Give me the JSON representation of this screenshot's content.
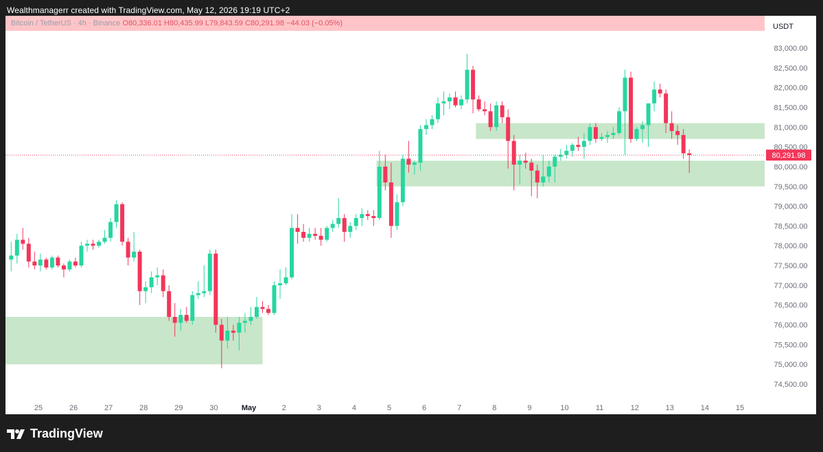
{
  "header": {
    "credit": "Wealthmanagerr created with TradingView.com, May 12, 2026 19:19 UTC+2"
  },
  "legend": {
    "symbol": "Bitcoin / TetherUS · 4h · Binance",
    "o_label": "O",
    "o_value": "80,336.01",
    "h_label": "H",
    "h_value": "80,435.99",
    "l_label": "L",
    "l_value": "79,843.59",
    "c_label": "C",
    "c_value": "80,291.98",
    "change": "−44.03 (−0.05%)"
  },
  "currency": "USDT",
  "brand": "TradingView",
  "colors": {
    "up": "#26d6a0",
    "down": "#f23659",
    "zone": "#c8e6c9",
    "price_tag": "#f23659"
  },
  "chart_data": {
    "type": "candlestick",
    "title": "Bitcoin / TetherUS · 4h · Binance",
    "ylabel": "USDT",
    "ylim": [
      74200,
      83300
    ],
    "y_ticks": [
      74500,
      75000,
      75500,
      76000,
      76500,
      77000,
      77500,
      78000,
      78500,
      79000,
      79500,
      80000,
      80500,
      81000,
      81500,
      82000,
      82500,
      83000
    ],
    "y_tick_labels": [
      "74,500.00",
      "75,000.00",
      "75,500.00",
      "76,000.00",
      "76,500.00",
      "77,000.00",
      "77,500.00",
      "78,000.00",
      "78,500.00",
      "79,000.00",
      "79,500.00",
      "80,000.00",
      "80,500.00",
      "81,000.00",
      "81,500.00",
      "82,000.00",
      "82,500.00",
      "83,000.00"
    ],
    "x_ticks": [
      "25",
      "26",
      "27",
      "28",
      "29",
      "30",
      "May",
      "2",
      "3",
      "4",
      "5",
      "6",
      "7",
      "8",
      "9",
      "10",
      "11",
      "12",
      "13",
      "14",
      "15"
    ],
    "candles_per_day": 6,
    "last_price": 80291.98,
    "last_price_label": "80,291.98",
    "zones": [
      {
        "from_index": 0,
        "to_index": 43,
        "low": 75000,
        "high": 76200
      },
      {
        "from_index": 63,
        "to_index": 130,
        "low": 79500,
        "high": 80150
      },
      {
        "from_index": 80,
        "to_index": 130,
        "low": 80700,
        "high": 81100
      }
    ],
    "candles": [
      [
        77650,
        78100,
        77350,
        77750
      ],
      [
        77750,
        78300,
        77550,
        78150
      ],
      [
        78150,
        78450,
        77900,
        78050
      ],
      [
        78050,
        78200,
        77450,
        77600
      ],
      [
        77600,
        77850,
        77400,
        77500
      ],
      [
        77500,
        77800,
        77350,
        77650
      ],
      [
        77650,
        77700,
        77400,
        77450
      ],
      [
        77450,
        77750,
        77400,
        77700
      ],
      [
        77700,
        77750,
        77450,
        77500
      ],
      [
        77500,
        77550,
        77200,
        77400
      ],
      [
        77400,
        77650,
        77350,
        77600
      ],
      [
        77600,
        77700,
        77450,
        77500
      ],
      [
        77500,
        78100,
        77450,
        78000
      ],
      [
        78000,
        78150,
        77850,
        78050
      ],
      [
        78050,
        78150,
        77900,
        78000
      ],
      [
        78000,
        78150,
        77950,
        78100
      ],
      [
        78100,
        78400,
        78050,
        78200
      ],
      [
        78200,
        78700,
        78100,
        78600
      ],
      [
        78600,
        79150,
        78450,
        79050
      ],
      [
        79050,
        79100,
        78000,
        78100
      ],
      [
        78100,
        78200,
        77500,
        77700
      ],
      [
        77700,
        78350,
        77600,
        77850
      ],
      [
        77850,
        77900,
        76500,
        76850
      ],
      [
        76850,
        77100,
        76550,
        76950
      ],
      [
        76950,
        77350,
        76800,
        77200
      ],
      [
        77200,
        77450,
        77000,
        77250
      ],
      [
        77250,
        77400,
        76700,
        76850
      ],
      [
        76850,
        77000,
        76100,
        76200
      ],
      [
        76200,
        76550,
        75700,
        76050
      ],
      [
        76050,
        76400,
        75850,
        76250
      ],
      [
        76250,
        76450,
        76050,
        76100
      ],
      [
        76100,
        76850,
        76000,
        76750
      ],
      [
        76750,
        77100,
        76650,
        76800
      ],
      [
        76800,
        77500,
        76700,
        76850
      ],
      [
        76850,
        77900,
        76750,
        77800
      ],
      [
        77800,
        77900,
        75800,
        76000
      ],
      [
        76000,
        76150,
        74900,
        75600
      ],
      [
        75600,
        76200,
        75400,
        75850
      ],
      [
        75850,
        76000,
        75600,
        75800
      ],
      [
        75800,
        76200,
        75350,
        76050
      ],
      [
        76050,
        76300,
        75800,
        76100
      ],
      [
        76100,
        76450,
        76000,
        76200
      ],
      [
        76200,
        76700,
        76150,
        76450
      ],
      [
        76450,
        76600,
        76300,
        76400
      ],
      [
        76400,
        76500,
        76250,
        76300
      ],
      [
        76300,
        77100,
        76250,
        77000
      ],
      [
        77000,
        77400,
        76650,
        77050
      ],
      [
        77050,
        77450,
        77000,
        77200
      ],
      [
        77200,
        78800,
        77150,
        78450
      ],
      [
        78450,
        78800,
        78050,
        78350
      ],
      [
        78350,
        78550,
        78100,
        78200
      ],
      [
        78200,
        78450,
        78100,
        78300
      ],
      [
        78300,
        78450,
        78150,
        78250
      ],
      [
        78250,
        78450,
        78000,
        78150
      ],
      [
        78150,
        78500,
        78100,
        78450
      ],
      [
        78450,
        78650,
        78350,
        78550
      ],
      [
        78550,
        79200,
        78450,
        78700
      ],
      [
        78700,
        78800,
        78100,
        78350
      ],
      [
        78350,
        78600,
        78200,
        78500
      ],
      [
        78500,
        78800,
        78400,
        78700
      ],
      [
        78700,
        78950,
        78500,
        78800
      ],
      [
        78800,
        78900,
        78650,
        78750
      ],
      [
        78750,
        78900,
        78500,
        78700
      ],
      [
        78700,
        80400,
        78650,
        80000
      ],
      [
        80000,
        80300,
        79400,
        79600
      ],
      [
        79600,
        80100,
        78200,
        78500
      ],
      [
        78500,
        79300,
        78400,
        79100
      ],
      [
        79100,
        80300,
        79000,
        80200
      ],
      [
        80200,
        80650,
        79850,
        80050
      ],
      [
        80050,
        80150,
        79800,
        80100
      ],
      [
        80100,
        81050,
        79900,
        80950
      ],
      [
        80950,
        81200,
        80800,
        81050
      ],
      [
        81050,
        81300,
        80950,
        81200
      ],
      [
        81200,
        81750,
        81100,
        81600
      ],
      [
        81600,
        81900,
        81300,
        81650
      ],
      [
        81650,
        81850,
        81450,
        81750
      ],
      [
        81750,
        81900,
        81500,
        81550
      ],
      [
        81550,
        81800,
        81450,
        81700
      ],
      [
        81700,
        82850,
        81600,
        82450
      ],
      [
        82450,
        82550,
        81350,
        81700
      ],
      [
        81700,
        81800,
        81400,
        81450
      ],
      [
        81450,
        81650,
        81300,
        81400
      ],
      [
        81400,
        81600,
        80900,
        81000
      ],
      [
        81000,
        81650,
        80900,
        81550
      ],
      [
        81550,
        81650,
        81100,
        81250
      ],
      [
        81250,
        81450,
        79950,
        80650
      ],
      [
        80650,
        80800,
        79400,
        80050
      ],
      [
        80050,
        80300,
        79550,
        80150
      ],
      [
        80150,
        80350,
        79950,
        80100
      ],
      [
        80100,
        80200,
        79250,
        79900
      ],
      [
        79900,
        80050,
        79200,
        79600
      ],
      [
        79600,
        80300,
        79500,
        79750
      ],
      [
        79750,
        80150,
        79600,
        80000
      ],
      [
        80000,
        80300,
        79600,
        80250
      ],
      [
        80250,
        80450,
        80150,
        80300
      ],
      [
        80300,
        80550,
        80200,
        80400
      ],
      [
        80400,
        80600,
        80250,
        80550
      ],
      [
        80550,
        80750,
        80400,
        80500
      ],
      [
        80500,
        80850,
        80200,
        80650
      ],
      [
        80650,
        81100,
        80550,
        81000
      ],
      [
        81000,
        81100,
        80600,
        80700
      ],
      [
        80700,
        80850,
        80650,
        80750
      ],
      [
        80750,
        80900,
        80600,
        80800
      ],
      [
        80800,
        81000,
        80700,
        80850
      ],
      [
        80850,
        81500,
        80800,
        81400
      ],
      [
        81400,
        82450,
        80300,
        82250
      ],
      [
        82250,
        82400,
        80600,
        80700
      ],
      [
        80700,
        81000,
        80650,
        80950
      ],
      [
        80950,
        81150,
        80600,
        81050
      ],
      [
        81050,
        81550,
        80500,
        81600
      ],
      [
        81600,
        82150,
        81400,
        81950
      ],
      [
        81950,
        82100,
        81750,
        81850
      ],
      [
        81850,
        81950,
        80850,
        81100
      ],
      [
        81100,
        81400,
        80700,
        80900
      ],
      [
        80900,
        81050,
        80550,
        80800
      ],
      [
        80800,
        80950,
        80200,
        80336
      ],
      [
        80336,
        80436,
        79844,
        80292
      ]
    ]
  }
}
